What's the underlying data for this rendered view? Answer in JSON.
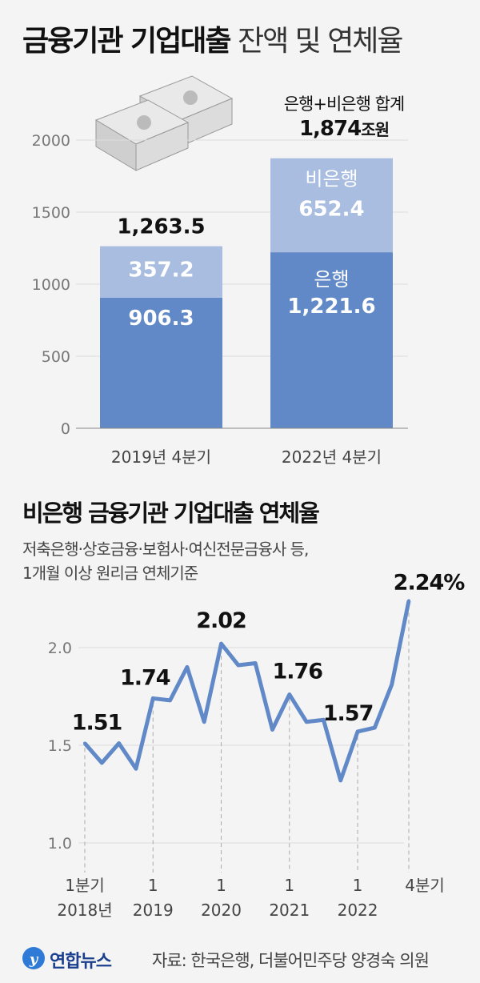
{
  "header": {
    "title_bold": "금융기관 기업대출",
    "title_light": " 잔액 및 연체율"
  },
  "bar_section": {
    "total_caption": "은행+비은행 합계",
    "total_value": "1,874",
    "total_unit": "조원"
  },
  "line_section": {
    "title": "비은행 금융기관 기업대출 연체율",
    "note_line1": "저축은행·상호금융·보험사·여신전문금융사 등,",
    "note_line2": "1개월 이상 원리금 연체기준"
  },
  "footer": {
    "logo_text": "연합뉴스",
    "source": "자료: 한국은행, 더불어민주당 양경숙 의원"
  },
  "colors": {
    "bank": "#6189c8",
    "nonbank": "#a9bde0",
    "line": "#6189c8",
    "background": "#f4f4f4"
  },
  "chart_data": [
    {
      "type": "bar",
      "stacked": true,
      "title": "금융기관 기업대출 잔액",
      "categories": [
        "2019년 4분기",
        "2022년 4분기"
      ],
      "series": [
        {
          "name": "은행",
          "values": [
            906.3,
            1221.6
          ],
          "labels": [
            "906.3",
            "1,221.6"
          ]
        },
        {
          "name": "비은행",
          "values": [
            357.2,
            652.4
          ],
          "labels": [
            "357.2",
            "652.4"
          ]
        }
      ],
      "totals": [
        "1,263.5",
        "1,874"
      ],
      "yticks": [
        0,
        500,
        1000,
        1500,
        2000
      ],
      "ylim": [
        0,
        2000
      ],
      "unit": "조원"
    },
    {
      "type": "line",
      "title": "비은행 금융기관 기업대출 연체율",
      "x": [
        "2018Q1",
        "2018Q2",
        "2018Q3",
        "2018Q4",
        "2019Q1",
        "2019Q2",
        "2019Q3",
        "2019Q4",
        "2020Q1",
        "2020Q2",
        "2020Q3",
        "2020Q4",
        "2021Q1",
        "2021Q2",
        "2021Q3",
        "2021Q4",
        "2022Q1",
        "2022Q2",
        "2022Q3",
        "2022Q4"
      ],
      "values": [
        1.51,
        1.41,
        1.51,
        1.38,
        1.74,
        1.73,
        1.9,
        1.62,
        2.02,
        1.91,
        1.92,
        1.58,
        1.76,
        1.62,
        1.63,
        1.32,
        1.57,
        1.59,
        1.81,
        2.24
      ],
      "annotations": [
        {
          "index": 0,
          "text": "1.51"
        },
        {
          "index": 4,
          "text": "1.74"
        },
        {
          "index": 8,
          "text": "2.02"
        },
        {
          "index": 12,
          "text": "1.76"
        },
        {
          "index": 16,
          "text": "1.57"
        },
        {
          "index": 19,
          "text": "2.24%"
        }
      ],
      "xtick_labels": [
        {
          "index": 0,
          "top": "1분기",
          "bottom": "2018년"
        },
        {
          "index": 4,
          "top": "1",
          "bottom": "2019"
        },
        {
          "index": 8,
          "top": "1",
          "bottom": "2020"
        },
        {
          "index": 12,
          "top": "1",
          "bottom": "2021"
        },
        {
          "index": 16,
          "top": "1",
          "bottom": "2022"
        },
        {
          "index": 19,
          "top": "4분기",
          "bottom": ""
        }
      ],
      "yticks": [
        "1.0",
        "1.5",
        "2.0"
      ],
      "ylim": [
        1.0,
        2.3
      ],
      "unit": "%"
    }
  ]
}
